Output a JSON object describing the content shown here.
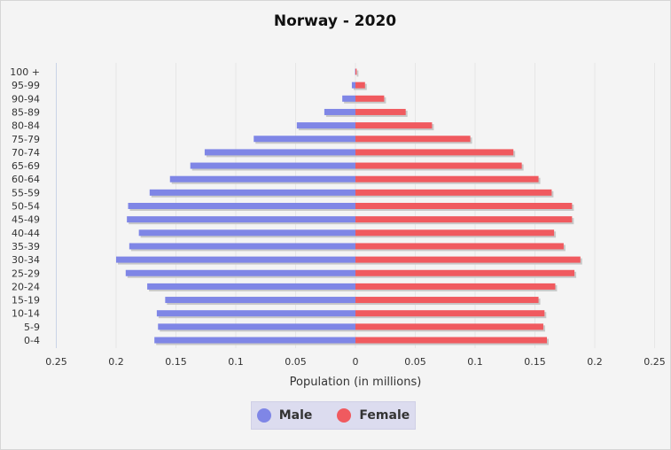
{
  "chart_data": {
    "type": "bar",
    "orientation": "horizontal",
    "title": "Norway - 2020",
    "xlabel": "Population (in millions)",
    "xlim": [
      -0.25,
      0.25
    ],
    "x_ticks": [
      "0.25",
      "0.2",
      "0.15",
      "0.1",
      "0.05",
      "0",
      "0.05",
      "0.1",
      "0.15",
      "0.2",
      "0.25"
    ],
    "grid": true,
    "legend_position": "bottom-center",
    "categories": [
      "100 +",
      "95-99",
      "90-94",
      "85-89",
      "80-84",
      "75-79",
      "70-74",
      "65-69",
      "60-64",
      "55-59",
      "50-54",
      "45-49",
      "40-44",
      "35-39",
      "30-34",
      "25-29",
      "20-24",
      "15-19",
      "10-14",
      "5-9",
      "0-4"
    ],
    "series": [
      {
        "name": "Male",
        "color": "#7f86e6",
        "values": [
          0.0003,
          0.003,
          0.011,
          0.026,
          0.049,
          0.085,
          0.126,
          0.138,
          0.155,
          0.172,
          0.19,
          0.191,
          0.181,
          0.189,
          0.2,
          0.192,
          0.174,
          0.159,
          0.166,
          0.165,
          0.168
        ]
      },
      {
        "name": "Female",
        "color": "#f05a5f",
        "values": [
          0.001,
          0.008,
          0.024,
          0.042,
          0.064,
          0.096,
          0.132,
          0.139,
          0.153,
          0.164,
          0.181,
          0.181,
          0.166,
          0.174,
          0.188,
          0.183,
          0.167,
          0.153,
          0.158,
          0.157,
          0.16
        ]
      }
    ]
  }
}
